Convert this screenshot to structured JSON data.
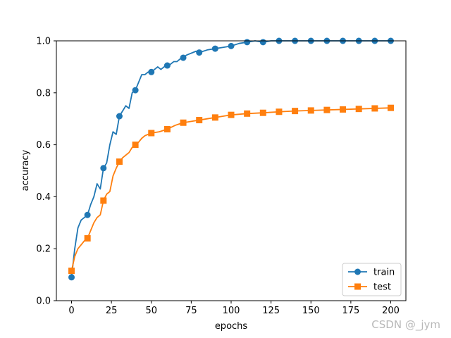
{
  "chart_data": {
    "type": "line",
    "title": "",
    "xlabel": "epochs",
    "ylabel": "accuracy",
    "xlim": [
      -9.5,
      209.5
    ],
    "ylim": [
      0.0,
      1.0
    ],
    "xticks": [
      0,
      25,
      50,
      75,
      100,
      125,
      150,
      175,
      200
    ],
    "yticks": [
      0.0,
      0.2,
      0.4,
      0.6,
      0.8,
      1.0
    ],
    "xtick_labels": [
      "0",
      "25",
      "50",
      "75",
      "100",
      "125",
      "150",
      "175",
      "200"
    ],
    "ytick_labels": [
      "0.0",
      "0.2",
      "0.4",
      "0.6",
      "0.8",
      "1.0"
    ],
    "marker_every": 10,
    "legend_position": "lower-right",
    "series": [
      {
        "name": "train",
        "color": "#1f77b4",
        "marker": "circle",
        "x": [
          0,
          2,
          4,
          6,
          8,
          10,
          12,
          14,
          16,
          18,
          20,
          22,
          24,
          26,
          28,
          30,
          32,
          34,
          36,
          38,
          40,
          42,
          44,
          46,
          48,
          50,
          52,
          54,
          56,
          58,
          60,
          62,
          64,
          66,
          68,
          70,
          72,
          74,
          76,
          78,
          80,
          85,
          90,
          95,
          100,
          105,
          110,
          115,
          120,
          125,
          130,
          140,
          150,
          160,
          170,
          180,
          190,
          200
        ],
        "values": [
          0.09,
          0.2,
          0.28,
          0.31,
          0.32,
          0.33,
          0.37,
          0.4,
          0.45,
          0.43,
          0.51,
          0.53,
          0.6,
          0.65,
          0.64,
          0.71,
          0.73,
          0.75,
          0.74,
          0.8,
          0.81,
          0.84,
          0.87,
          0.87,
          0.88,
          0.88,
          0.89,
          0.9,
          0.89,
          0.9,
          0.905,
          0.91,
          0.92,
          0.92,
          0.93,
          0.935,
          0.945,
          0.95,
          0.955,
          0.96,
          0.955,
          0.965,
          0.97,
          0.975,
          0.98,
          0.99,
          0.995,
          1.0,
          0.995,
          1.0,
          1.0,
          1.0,
          1.0,
          1.0,
          1.0,
          1.0,
          1.0,
          1.0
        ]
      },
      {
        "name": "test",
        "color": "#ff7f0e",
        "marker": "square",
        "x": [
          0,
          2,
          4,
          6,
          8,
          10,
          12,
          14,
          16,
          18,
          20,
          22,
          24,
          26,
          28,
          30,
          32,
          34,
          36,
          38,
          40,
          42,
          44,
          46,
          48,
          50,
          55,
          60,
          65,
          70,
          75,
          80,
          85,
          90,
          95,
          100,
          110,
          120,
          130,
          140,
          150,
          160,
          170,
          180,
          190,
          200
        ],
        "values": [
          0.115,
          0.17,
          0.2,
          0.215,
          0.23,
          0.24,
          0.27,
          0.3,
          0.32,
          0.33,
          0.385,
          0.41,
          0.42,
          0.48,
          0.51,
          0.535,
          0.55,
          0.56,
          0.57,
          0.59,
          0.6,
          0.61,
          0.625,
          0.635,
          0.64,
          0.645,
          0.65,
          0.66,
          0.675,
          0.685,
          0.69,
          0.695,
          0.7,
          0.705,
          0.71,
          0.715,
          0.72,
          0.723,
          0.727,
          0.73,
          0.732,
          0.734,
          0.736,
          0.738,
          0.74,
          0.742
        ]
      }
    ]
  },
  "watermark": "CSDN @_jym"
}
